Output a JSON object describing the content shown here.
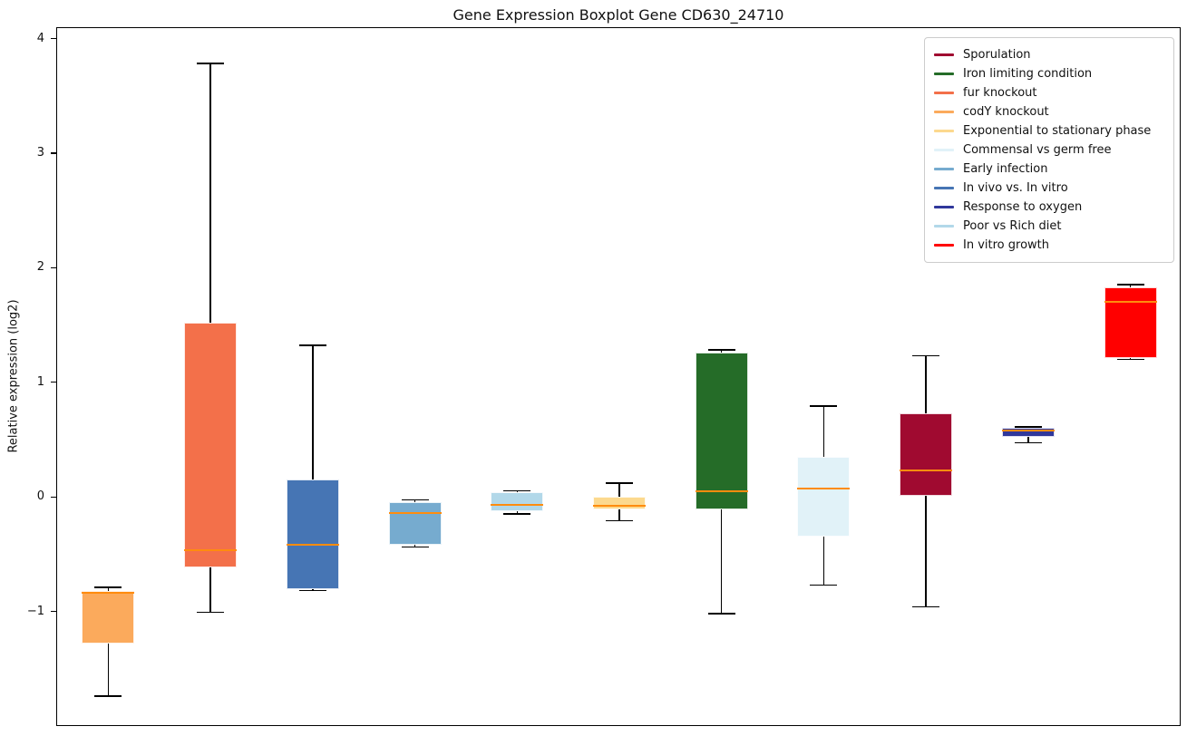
{
  "chart_data": {
    "type": "boxplot",
    "title": "Gene Expression Boxplot Gene CD630_24710",
    "ylabel": "Relative expression (log2)",
    "ylim": [
      -2.0,
      4.1
    ],
    "yticks": [
      {
        "value": 4,
        "label": "4"
      },
      {
        "value": 3,
        "label": "3"
      },
      {
        "value": 2,
        "label": "2"
      },
      {
        "value": 1,
        "label": "1"
      },
      {
        "value": 0,
        "label": "0"
      },
      {
        "value": -1,
        "label": "−1"
      }
    ],
    "xticklabels": [],
    "grid": false,
    "legend_position": "upper right",
    "median_color": "#ff8c0e",
    "whisker_color": "#000000",
    "series": [
      {
        "name": "codY knockout",
        "color": "#fbaa5c",
        "min": -1.73,
        "q1": -1.27,
        "median": -0.83,
        "q3": -0.81,
        "max": -0.78
      },
      {
        "name": "fur knockout",
        "color": "#f3704a",
        "min": -1.0,
        "q1": -0.61,
        "median": -0.46,
        "q3": 1.53,
        "max": 3.79
      },
      {
        "name": "In vivo vs. In vitro",
        "color": "#4675b4",
        "min": -0.81,
        "q1": -0.8,
        "median": -0.41,
        "q3": 0.16,
        "max": 1.33
      },
      {
        "name": "Early infection",
        "color": "#76abcf",
        "min": -0.43,
        "q1": -0.41,
        "median": -0.13,
        "q3": -0.04,
        "max": -0.02
      },
      {
        "name": "Poor vs Rich diet",
        "color": "#b2d8e9",
        "min": -0.14,
        "q1": -0.12,
        "median": -0.06,
        "q3": 0.05,
        "max": 0.06
      },
      {
        "name": "Exponential to stationary phase",
        "color": "#fcd98e",
        "min": -0.2,
        "q1": -0.1,
        "median": -0.07,
        "q3": 0.01,
        "max": 0.13
      },
      {
        "name": "Iron limiting condition",
        "color": "#256c28",
        "min": -1.01,
        "q1": -0.1,
        "median": 0.06,
        "q3": 1.27,
        "max": 1.29
      },
      {
        "name": "Commensal vs germ free",
        "color": "#e1f2f8",
        "min": -0.76,
        "q1": -0.34,
        "median": 0.08,
        "q3": 0.36,
        "max": 0.8
      },
      {
        "name": "Sporulation",
        "color": "#a00a30",
        "min": -0.95,
        "q1": 0.02,
        "median": 0.24,
        "q3": 0.74,
        "max": 1.24
      },
      {
        "name": "Response to oxygen",
        "color": "#30389b",
        "min": 0.48,
        "q1": 0.53,
        "median": 0.59,
        "q3": 0.61,
        "max": 0.62
      },
      {
        "name": "In vitro growth",
        "color": "#ff0000",
        "min": 1.21,
        "q1": 1.22,
        "median": 1.71,
        "q3": 1.84,
        "max": 1.86
      }
    ],
    "legend": [
      "Sporulation",
      "Iron limiting condition",
      "fur knockout",
      "codY knockout",
      "Exponential to stationary phase",
      "Commensal vs germ free",
      "Early infection",
      "In vivo vs. In vitro",
      "Response to oxygen",
      "Poor vs Rich diet",
      "In vitro growth"
    ]
  }
}
